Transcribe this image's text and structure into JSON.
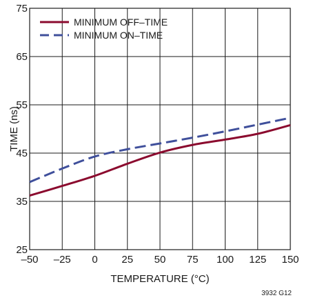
{
  "chart_data": {
    "type": "line",
    "xlabel": "TEMPERATURE (°C)",
    "ylabel": "TIME (ns)",
    "xlim": [
      -50,
      150
    ],
    "ylim": [
      25,
      75
    ],
    "x_ticks": [
      -50,
      -25,
      0,
      25,
      50,
      75,
      100,
      125,
      150
    ],
    "y_ticks": [
      25,
      35,
      45,
      55,
      65,
      75
    ],
    "x_tick_labels": [
      "–50",
      "–25",
      "0",
      "25",
      "50",
      "75",
      "100",
      "125",
      "150"
    ],
    "y_tick_labels": [
      "25",
      "35",
      "45",
      "55",
      "65",
      "75"
    ],
    "grid": true,
    "legend_position": "top-left",
    "series": [
      {
        "name": "MINIMUM OFF–TIME",
        "color": "#8b0a2e",
        "style": "solid",
        "x": [
          -50,
          -25,
          0,
          25,
          50,
          75,
          100,
          125,
          150
        ],
        "y": [
          36.2,
          38.2,
          40.3,
          42.8,
          45.1,
          46.7,
          47.8,
          49.0,
          50.8
        ]
      },
      {
        "name": "MINIMUM ON–TIME",
        "color": "#3f4f9b",
        "style": "dashed",
        "x": [
          -50,
          -25,
          0,
          25,
          50,
          75,
          100,
          125,
          150
        ],
        "y": [
          39.0,
          41.8,
          44.3,
          45.8,
          47.0,
          48.2,
          49.5,
          50.9,
          52.3
        ]
      }
    ],
    "code_label": "3932 G12"
  }
}
